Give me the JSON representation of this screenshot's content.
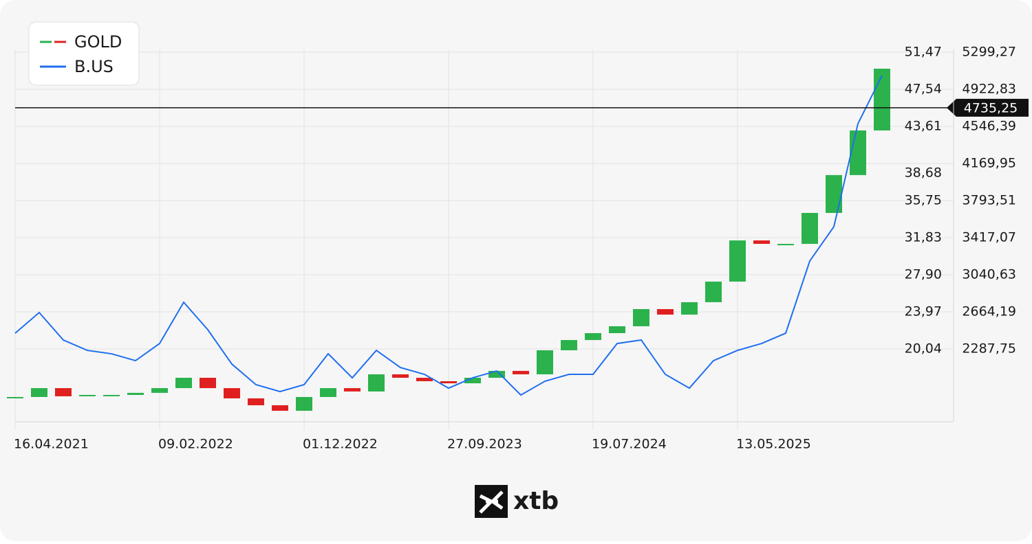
{
  "chart_data": {
    "type": "candlestick-line",
    "categories": [
      "16.04.2021",
      null,
      null,
      null,
      null,
      null,
      "09.02.2022",
      null,
      null,
      null,
      null,
      null,
      "01.12.2022",
      null,
      null,
      null,
      null,
      null,
      "27.09.2023",
      null,
      null,
      null,
      null,
      null,
      "19.07.2024",
      null,
      null,
      null,
      null,
      null,
      "13.05.2025",
      null,
      null,
      null,
      null,
      null,
      null
    ],
    "series": [
      {
        "name": "GOLD",
        "up_color": "#2bb24c",
        "down_color": "#e02020",
        "values": [
          1800,
          1890,
          1807,
          1821,
          1821,
          1842,
          1890,
          1995,
          1890,
          1786,
          1716,
          1660,
          1800,
          1890,
          1856,
          2030,
          1995,
          1960,
          1939,
          1995,
          2065,
          2030,
          2274,
          2378,
          2448,
          2518,
          2692,
          2636,
          2762,
          2971,
          3389,
          3354,
          3354,
          3668,
          4052,
          4505,
          5132
        ]
      },
      {
        "name": "B.US",
        "color": "#1f6ef0",
        "axis": "y2",
        "values": [
          21.7,
          23.89,
          20.98,
          19.88,
          19.52,
          18.79,
          20.61,
          24.98,
          22.07,
          18.43,
          16.25,
          15.52,
          16.25,
          19.52,
          16.97,
          19.88,
          18.06,
          17.34,
          15.88,
          16.97,
          17.7,
          15.15,
          16.61,
          17.34,
          17.34,
          20.61,
          20.98,
          17.34,
          15.88,
          18.79,
          19.88,
          20.61,
          21.7,
          29.35,
          32.98,
          43.9,
          49.0
        ]
      }
    ],
    "ylim": [
      1548.8,
      5675.7
    ],
    "yticks": [
      {
        "value": 5299.27,
        "label": "5299,27"
      },
      {
        "value": 4922.83,
        "label": "4922,83"
      },
      {
        "value": 4546.39,
        "label": "4546,39"
      },
      {
        "value": 4169.95,
        "label": "4169,95"
      },
      {
        "value": 3793.51,
        "label": "3793,51"
      },
      {
        "value": 3417.07,
        "label": "3417,07"
      },
      {
        "value": 3040.63,
        "label": "3040,63"
      },
      {
        "value": 2664.19,
        "label": "2664,19"
      },
      {
        "value": 2287.75,
        "label": "2287,75"
      }
    ],
    "y2lim": [
      12.32,
      55.4
    ],
    "y2ticks": [
      {
        "value": 51.47,
        "label": "51,47"
      },
      {
        "value": 47.54,
        "label": "47,54"
      },
      {
        "value": 43.61,
        "label": "43,61"
      },
      {
        "value": 38.68,
        "label": "38,68"
      },
      {
        "value": 35.75,
        "label": "35,75"
      },
      {
        "value": 31.83,
        "label": "31,83"
      },
      {
        "value": 27.9,
        "label": "27,90"
      },
      {
        "value": 23.97,
        "label": "23,97"
      },
      {
        "value": 20.04,
        "label": "20,04"
      }
    ],
    "current_price": {
      "value": 4735.25,
      "label": "4735,25"
    },
    "grid": true,
    "legend": "top-left",
    "brand": "xtb"
  }
}
